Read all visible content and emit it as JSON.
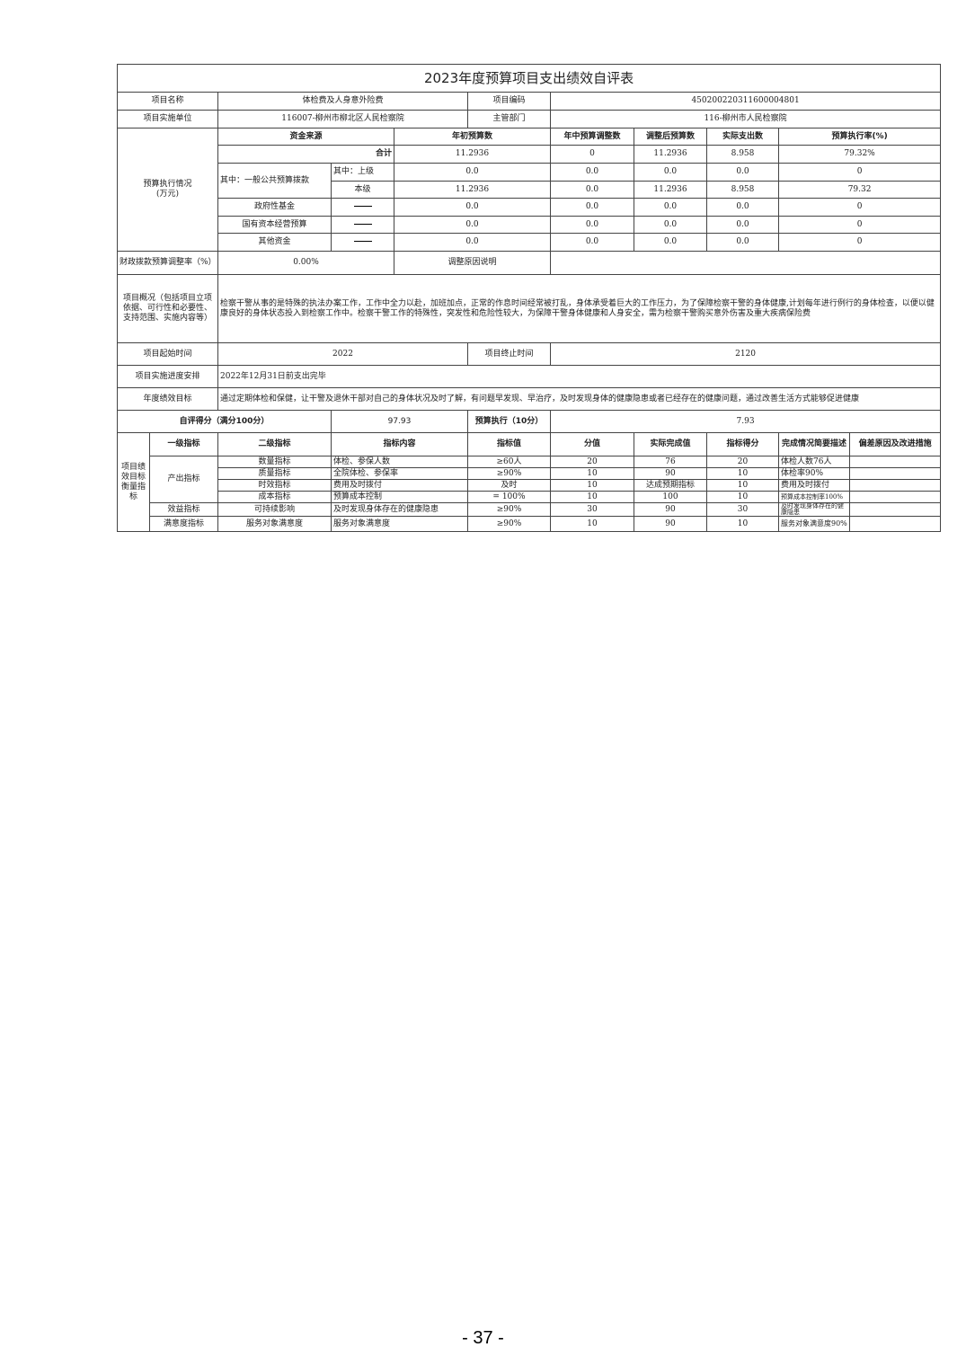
{
  "title": "2023年度预算项目支出绩效自评表",
  "info": {
    "name_label": "项目名称",
    "name": "体检费及人身意外险费",
    "code_label": "项目编码",
    "code": "450200220311600004801",
    "unit_label": "项目实施单位",
    "unit": "116007-柳州市柳北区人民检察院",
    "dept_label": "主管部门",
    "dept": "116-柳州市人民检察院"
  },
  "budget": {
    "section_label": "预算执行情况\n(万元)",
    "headers": [
      "资金来源",
      "年初预算数",
      "年中预算调整数",
      "调整后预算数",
      "实际支出数",
      "预算执行率(%)"
    ],
    "total": {
      "label": "合计",
      "values": [
        "11.2936",
        "0",
        "11.2936",
        "8.958",
        "79.32%"
      ]
    },
    "general_label": "其中：一般公共预算拨款",
    "upper": {
      "label": "其中：上级",
      "values": [
        "0.0",
        "0.0",
        "0.0",
        "0.0",
        "0"
      ]
    },
    "local": {
      "label": "本级",
      "values": [
        "11.2936",
        "0.0",
        "11.2936",
        "8.958",
        "79.32"
      ]
    },
    "others": [
      {
        "label": "政府性基金",
        "values": [
          "0.0",
          "0.0",
          "0.0",
          "0.0",
          "0"
        ]
      },
      {
        "label": "国有资本经营预算",
        "values": [
          "0.0",
          "0.0",
          "0.0",
          "0.0",
          "0"
        ]
      },
      {
        "label": "其他资金",
        "values": [
          "0.0",
          "0.0",
          "0.0",
          "0.0",
          "0"
        ]
      }
    ]
  },
  "adjust": {
    "label": "财政拨款预算调整率（%）",
    "value": "0.00%",
    "reason_label": "调整原因说明",
    "reason": ""
  },
  "overview": {
    "label": "项目概况（包括项目立项依据、可行性和必要性、支持范围、实施内容等）",
    "text": "检察干警从事的是特殊的执法办案工作，工作中全力以赴，加班加点，正常的作息时间经常被打乱，身体承受着巨大的工作压力，为了保障检察干警的身体健康,计划每年进行例行的身体检查，以便以健康良好的身体状态投入到检察工作中。检察干警工作的特殊性，突发性和危险性较大，为保障干警身体健康和人身安全，需为检察干警购买意外伤害及重大疾病保险费"
  },
  "time": {
    "start_label": "项目起始时间",
    "start": "2022",
    "end_label": "项目终止时间",
    "end": "2120"
  },
  "schedule": {
    "label": "项目实施进度安排",
    "text": "2022年12月31日前支出完毕"
  },
  "goal": {
    "label": "年度绩效目标",
    "text": "通过定期体检和保健，让干警及退休干部对自己的身体状况及时了解，有问题早发现、早治疗，及时发现身体的健康隐患或者已经存在的健康问题，通过改善生活方式能够促进健康"
  },
  "score": {
    "label": "自评得分（满分100分）",
    "value": "97.93",
    "exec_label": "预算执行（10分）",
    "exec_value": "7.93"
  },
  "perf": {
    "section_label": "项目绩效目标衡量指标",
    "headers": [
      "一级指标",
      "二级指标",
      "指标内容",
      "指标值",
      "分值",
      "实际完成值",
      "指标得分",
      "完成情况简要描述",
      "偏差原因及改进措施"
    ],
    "output_label": "产出指标",
    "rows": [
      [
        "数量指标",
        "体检、参保人数",
        "≥60人",
        "20",
        "76",
        "20",
        "体检人数76人",
        ""
      ],
      [
        "质量指标",
        "全院体检、参保率",
        "≥90%",
        "10",
        "90",
        "10",
        "体检率90%",
        ""
      ],
      [
        "时效指标",
        "费用及时拨付",
        "及时",
        "10",
        "达成预期指标",
        "10",
        "费用及时拨付",
        ""
      ],
      [
        "成本指标",
        "预算成本控制",
        "= 100%",
        "10",
        "100",
        "10",
        "预算成本控制率100%",
        ""
      ]
    ],
    "benefit": {
      "level1": "效益指标",
      "row": [
        "可持续影响",
        "及时发现身体存在的健康隐患",
        "≥90%",
        "30",
        "90",
        "30",
        "及时发现身体存在的健康隐患",
        ""
      ]
    },
    "satisfaction": {
      "level1": "满意度指标",
      "row": [
        "服务对象满意度",
        "服务对象满意度",
        "≥90%",
        "10",
        "90",
        "10",
        "服务对象满意度90%",
        ""
      ]
    }
  },
  "page_number": "- 37 -"
}
